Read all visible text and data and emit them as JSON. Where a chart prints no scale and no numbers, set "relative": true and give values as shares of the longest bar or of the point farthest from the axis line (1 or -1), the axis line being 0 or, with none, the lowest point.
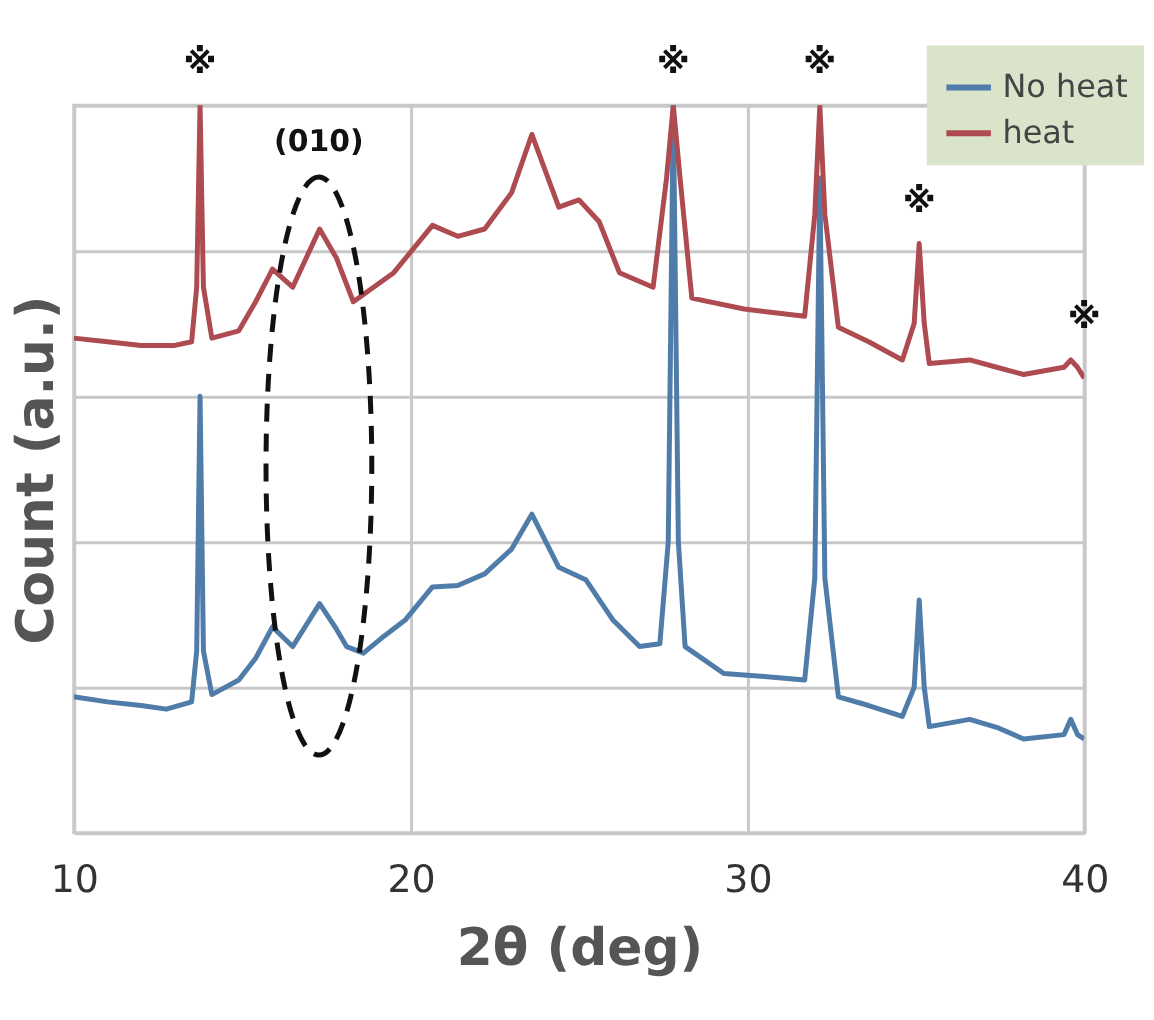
{
  "chart_data": {
    "type": "line",
    "relative": true,
    "xlabel": "2θ (deg)",
    "ylabel": "Count (a.u.)",
    "xlim": [
      10,
      40
    ],
    "xticks": [
      10,
      20,
      30,
      40
    ],
    "grid": true,
    "legend": "top right",
    "tick_labels": "x",
    "line_style": "solid",
    "marker": "none",
    "series": [
      {
        "name": "No heat",
        "color": "#4f7ca8",
        "x": [
          10,
          11,
          12,
          12.75,
          13.5,
          13.65,
          13.75,
          13.85,
          14.1,
          14.9,
          15.4,
          15.9,
          16.5,
          17.3,
          17.8,
          18.1,
          18.6,
          19.2,
          19.85,
          20.65,
          21.4,
          22.2,
          23,
          23.6,
          24.4,
          25.2,
          26,
          26.8,
          27.4,
          27.65,
          27.8,
          27.95,
          28.15,
          29.3,
          30.5,
          31.7,
          32.0,
          32.15,
          32.3,
          32.7,
          33.6,
          34.6,
          34.95,
          35.1,
          35.25,
          35.4,
          36.6,
          37.4,
          38.2,
          39.4,
          39.6,
          39.8,
          40
        ],
        "values": [
          0.187,
          0.18,
          0.175,
          0.17,
          0.18,
          0.25,
          0.6,
          0.25,
          0.19,
          0.21,
          0.24,
          0.283,
          0.256,
          0.315,
          0.28,
          0.256,
          0.247,
          0.27,
          0.293,
          0.338,
          0.34,
          0.356,
          0.39,
          0.438,
          0.365,
          0.348,
          0.293,
          0.256,
          0.26,
          0.4,
          1.0,
          0.4,
          0.256,
          0.219,
          0.215,
          0.21,
          0.35,
          0.9,
          0.35,
          0.187,
          0.175,
          0.16,
          0.2,
          0.32,
          0.2,
          0.146,
          0.156,
          0.145,
          0.129,
          0.135,
          0.156,
          0.135,
          0.129
        ]
      },
      {
        "name": "heat",
        "color": "#ad4b50",
        "x": [
          10,
          11,
          12,
          13,
          13.5,
          13.65,
          13.75,
          13.85,
          14.1,
          14.9,
          15.4,
          15.9,
          16.5,
          17.3,
          17.8,
          18.3,
          18.9,
          19.5,
          20.65,
          21.4,
          22.2,
          23,
          23.6,
          24.4,
          25,
          25.6,
          26.2,
          27.2,
          27.6,
          27.8,
          28.0,
          28.35,
          29.9,
          31.7,
          32.0,
          32.15,
          32.3,
          32.7,
          33.6,
          34.6,
          34.95,
          35.1,
          35.25,
          35.4,
          36.6,
          37.4,
          38.2,
          39.4,
          39.6,
          39.8,
          40
        ],
        "values": [
          0.68,
          0.675,
          0.67,
          0.67,
          0.675,
          0.75,
          1.0,
          0.75,
          0.68,
          0.69,
          0.73,
          0.775,
          0.75,
          0.83,
          0.79,
          0.73,
          0.75,
          0.77,
          0.835,
          0.82,
          0.83,
          0.88,
          0.96,
          0.86,
          0.87,
          0.84,
          0.77,
          0.75,
          0.9,
          1.0,
          0.9,
          0.735,
          0.72,
          0.71,
          0.85,
          1.0,
          0.85,
          0.695,
          0.675,
          0.65,
          0.7,
          0.81,
          0.7,
          0.645,
          0.65,
          0.64,
          0.63,
          0.64,
          0.65,
          0.64,
          0.625
        ]
      }
    ],
    "annotations": [
      {
        "text": "※",
        "x": 13.75,
        "y": 1.0
      },
      "(010)",
      {
        "text": "※",
        "x": 27.8,
        "y": 1.0
      },
      {
        "text": "※",
        "x": 32.15,
        "y": 1.0
      },
      {
        "text": "※",
        "x": 35.1,
        "y": 0.81
      },
      {
        "text": "※",
        "x": 40,
        "y": 0.65
      }
    ]
  }
}
